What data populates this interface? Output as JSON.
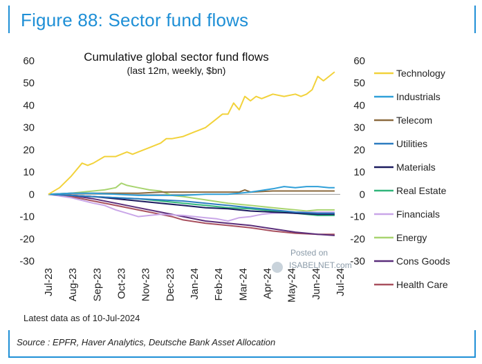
{
  "figure": {
    "title": "Figure 88: Sector fund flows",
    "source": "Source : EPFR, Haver Analytics, Deutsche Bank Asset Allocation",
    "footnote": "Latest data as of 10-Jul-2024",
    "accent_color": "#1e8fd6"
  },
  "watermark": {
    "line1": "Posted on",
    "line2": "ISABELNET.com"
  },
  "chart_data": {
    "type": "line",
    "title": "Cumulative global sector fund flows",
    "subtitle": "(last 12m, weekly, $bn)",
    "xlabel": "",
    "ylabel": "",
    "ylim": [
      -30,
      60
    ],
    "yticks": [
      -30,
      -20,
      -10,
      0,
      10,
      20,
      30,
      40,
      50,
      60
    ],
    "ytick_labels_left": [
      "-30",
      "-20",
      "-10",
      "0",
      "10",
      "20",
      "30",
      "40",
      "50",
      "60"
    ],
    "ytick_labels_right": [
      "-30",
      "-20",
      "-10",
      "0",
      "10",
      "20",
      "30",
      "40",
      "50",
      "60"
    ],
    "x_categories": [
      "Jul-23",
      "Aug-23",
      "Sep-23",
      "Oct-23",
      "Nov-23",
      "Dec-23",
      "Jan-24",
      "Feb-24",
      "Mar-24",
      "Apr-24",
      "May-24",
      "Jun-24",
      "Jul-24"
    ],
    "x_steps": 52,
    "series": [
      {
        "name": "Technology",
        "color": "#f2d23a",
        "x": [
          0,
          2,
          4,
          6,
          7,
          8,
          10,
          12,
          14,
          15,
          16,
          18,
          20,
          21,
          22,
          24,
          26,
          27,
          28,
          30,
          31,
          32,
          33,
          34,
          35,
          36,
          37,
          38,
          40,
          42,
          44,
          45,
          46,
          47,
          48,
          49,
          50,
          51
        ],
        "y": [
          0,
          3,
          8,
          14,
          13,
          14,
          17,
          17,
          19,
          18,
          19,
          21,
          23,
          25,
          25,
          26,
          28,
          29,
          30,
          34,
          36,
          36,
          41,
          38,
          44,
          42,
          44,
          43,
          45,
          44,
          45,
          44,
          45,
          47,
          53,
          51,
          53,
          55
        ]
      },
      {
        "name": "Industrials",
        "color": "#2e9fd8",
        "x": [
          0,
          4,
          8,
          12,
          16,
          20,
          24,
          28,
          32,
          36,
          40,
          42,
          44,
          46,
          48,
          50,
          51
        ],
        "y": [
          0,
          0.5,
          0.5,
          0,
          -0.5,
          -0.5,
          -0.5,
          0,
          0,
          1,
          2.5,
          3.5,
          3,
          3.5,
          3.5,
          3,
          3
        ]
      },
      {
        "name": "Telecom",
        "color": "#8b6a3e",
        "x": [
          0,
          4,
          8,
          12,
          16,
          20,
          24,
          28,
          32,
          34,
          35,
          36,
          40,
          44,
          48,
          51
        ],
        "y": [
          0,
          0.5,
          0.5,
          0.5,
          0.5,
          1,
          1,
          1,
          1,
          1,
          2,
          1,
          1.5,
          1.5,
          1.5,
          1.5
        ]
      },
      {
        "name": "Utilities",
        "color": "#2b7bc0",
        "x": [
          0,
          4,
          8,
          12,
          16,
          20,
          24,
          28,
          32,
          36,
          40,
          44,
          48,
          51
        ],
        "y": [
          0,
          -0.5,
          -1,
          -1.5,
          -2,
          -2.5,
          -3,
          -4,
          -5,
          -6,
          -7,
          -8,
          -8.5,
          -8.5
        ]
      },
      {
        "name": "Materials",
        "color": "#1a1a5e",
        "x": [
          0,
          4,
          8,
          12,
          16,
          20,
          24,
          28,
          32,
          36,
          40,
          44,
          48,
          51
        ],
        "y": [
          0,
          -0.5,
          -1,
          -2,
          -3,
          -4,
          -5,
          -6,
          -6.5,
          -7.5,
          -8,
          -8.5,
          -9,
          -9
        ]
      },
      {
        "name": "Real Estate",
        "color": "#2fb57a",
        "x": [
          0,
          4,
          8,
          12,
          16,
          20,
          24,
          28,
          32,
          36,
          40,
          44,
          48,
          51
        ],
        "y": [
          0,
          -0.5,
          -1,
          -1.5,
          -2,
          -3,
          -4,
          -5,
          -6,
          -6.5,
          -7.5,
          -8.5,
          -9.5,
          -9.5
        ]
      },
      {
        "name": "Financials",
        "color": "#c9a6e8",
        "x": [
          0,
          4,
          8,
          10,
          12,
          14,
          16,
          18,
          20,
          24,
          28,
          30,
          32,
          34,
          36,
          38,
          40,
          44,
          48,
          51
        ],
        "y": [
          0,
          -1.5,
          -4,
          -5,
          -7,
          -8.5,
          -10,
          -9.5,
          -9,
          -9.5,
          -10.5,
          -11,
          -12,
          -10.5,
          -10,
          -9,
          -8.5,
          -8,
          -8,
          -8
        ]
      },
      {
        "name": "Energy",
        "color": "#a8d46f",
        "x": [
          0,
          4,
          6,
          8,
          10,
          12,
          13,
          14,
          16,
          18,
          20,
          22,
          24,
          28,
          32,
          36,
          40,
          44,
          46,
          48,
          51
        ],
        "y": [
          0,
          0.5,
          1,
          1.5,
          2,
          3,
          5,
          4,
          3,
          2,
          1.5,
          -0.5,
          -1,
          -2.5,
          -4,
          -5,
          -6,
          -7,
          -7.5,
          -7,
          -7
        ]
      },
      {
        "name": "Cons Goods",
        "color": "#5a2d7a",
        "x": [
          0,
          4,
          8,
          12,
          16,
          20,
          24,
          28,
          32,
          36,
          40,
          44,
          48,
          51
        ],
        "y": [
          0,
          -0.5,
          -2,
          -4,
          -6,
          -8,
          -10,
          -12,
          -13,
          -14,
          -15.5,
          -17,
          -18,
          -18.5
        ]
      },
      {
        "name": "Health Care",
        "color": "#a8505e",
        "x": [
          0,
          4,
          8,
          12,
          16,
          20,
          22,
          24,
          28,
          32,
          36,
          40,
          44,
          48,
          51
        ],
        "y": [
          0,
          -1,
          -3,
          -5,
          -7,
          -9,
          -10,
          -11.5,
          -13,
          -14,
          -15,
          -16.5,
          -17.5,
          -18,
          -18
        ]
      }
    ]
  }
}
